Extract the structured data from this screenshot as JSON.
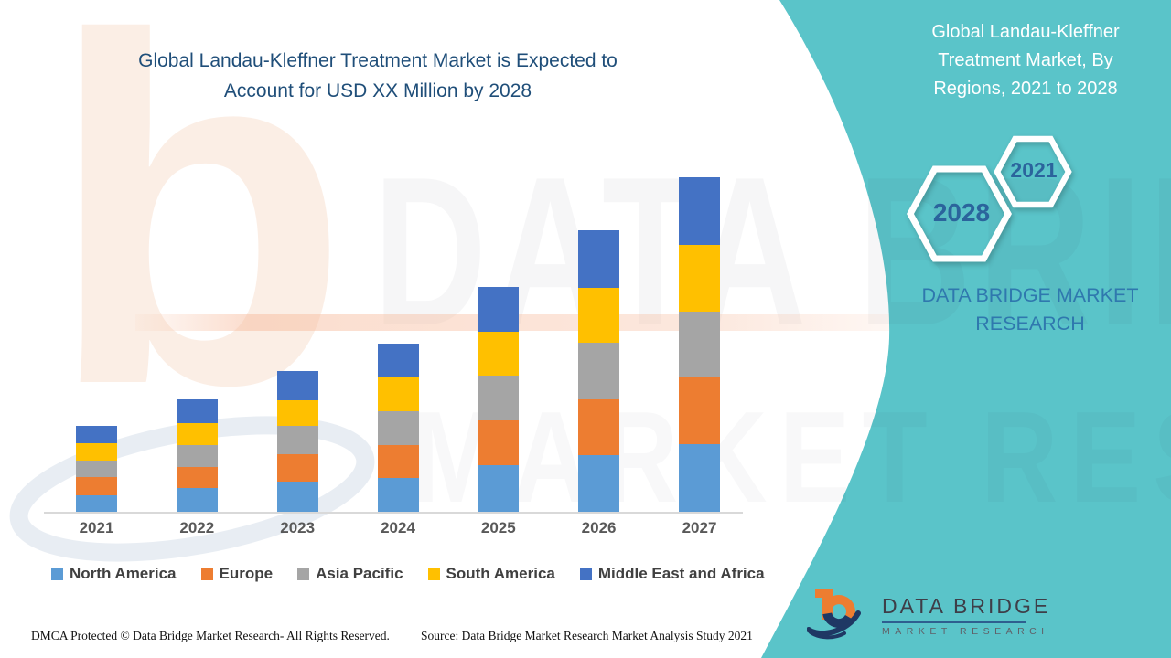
{
  "title": {
    "lines": [
      "Global Landau-Kleffner Treatment Market is Expected to",
      "Account for USD XX Million by 2028"
    ],
    "color": "#1F4E79"
  },
  "sidebar": {
    "bg_color": "#5AC4C9",
    "title_lines": [
      "Global Landau-Kleffner",
      "Treatment Market, By",
      "Regions, 2021 to 2028"
    ],
    "hexagons": [
      {
        "label": "2028"
      },
      {
        "label": "2021"
      }
    ],
    "year_label_color": "#2B649C",
    "brand": "DATA BRIDGE MARKET RESEARCH",
    "brand_color": "#2F78AE"
  },
  "chart_data": {
    "type": "bar",
    "stacked": true,
    "title": "Global Landau-Kleffner Treatment Market is Expected to Account for USD XX Million by 2028",
    "xlabel": "",
    "ylabel": "",
    "y_axis_visible": false,
    "unit": "USD Million (values shown as XX, relative scale)",
    "legend_position": "bottom",
    "categories": [
      "2021",
      "2022",
      "2023",
      "2024",
      "2025",
      "2026",
      "2027"
    ],
    "series": [
      {
        "name": "North America",
        "color": "#5B9BD5",
        "values": [
          18,
          26,
          33,
          37,
          51,
          62,
          74
        ]
      },
      {
        "name": "Europe",
        "color": "#ED7D31",
        "values": [
          20,
          23,
          30,
          36,
          49,
          61,
          74
        ]
      },
      {
        "name": "Asia Pacific",
        "color": "#A5A5A5",
        "values": [
          18,
          24,
          31,
          37,
          49,
          62,
          71
        ]
      },
      {
        "name": "South America",
        "color": "#FFC000",
        "values": [
          19,
          24,
          28,
          38,
          48,
          60,
          73
        ]
      },
      {
        "name": "Middle East and Africa",
        "color": "#4472C4",
        "values": [
          19,
          26,
          32,
          36,
          49,
          63,
          74
        ]
      }
    ],
    "totals": [
      94,
      123,
      154,
      184,
      246,
      308,
      366
    ]
  },
  "footer": {
    "left": "DMCA Protected © Data Bridge Market Research- All Rights Reserved.",
    "right": "Source: Data Bridge Market Research Market Analysis Study 2021"
  },
  "logo": {
    "name": "DATA BRIDGE",
    "sub": "MARKET RESEARCH"
  },
  "watermark": {
    "line1": "DATA BRIDGE",
    "line2": "MARKET RESEARCH",
    "letter_b": "b"
  }
}
